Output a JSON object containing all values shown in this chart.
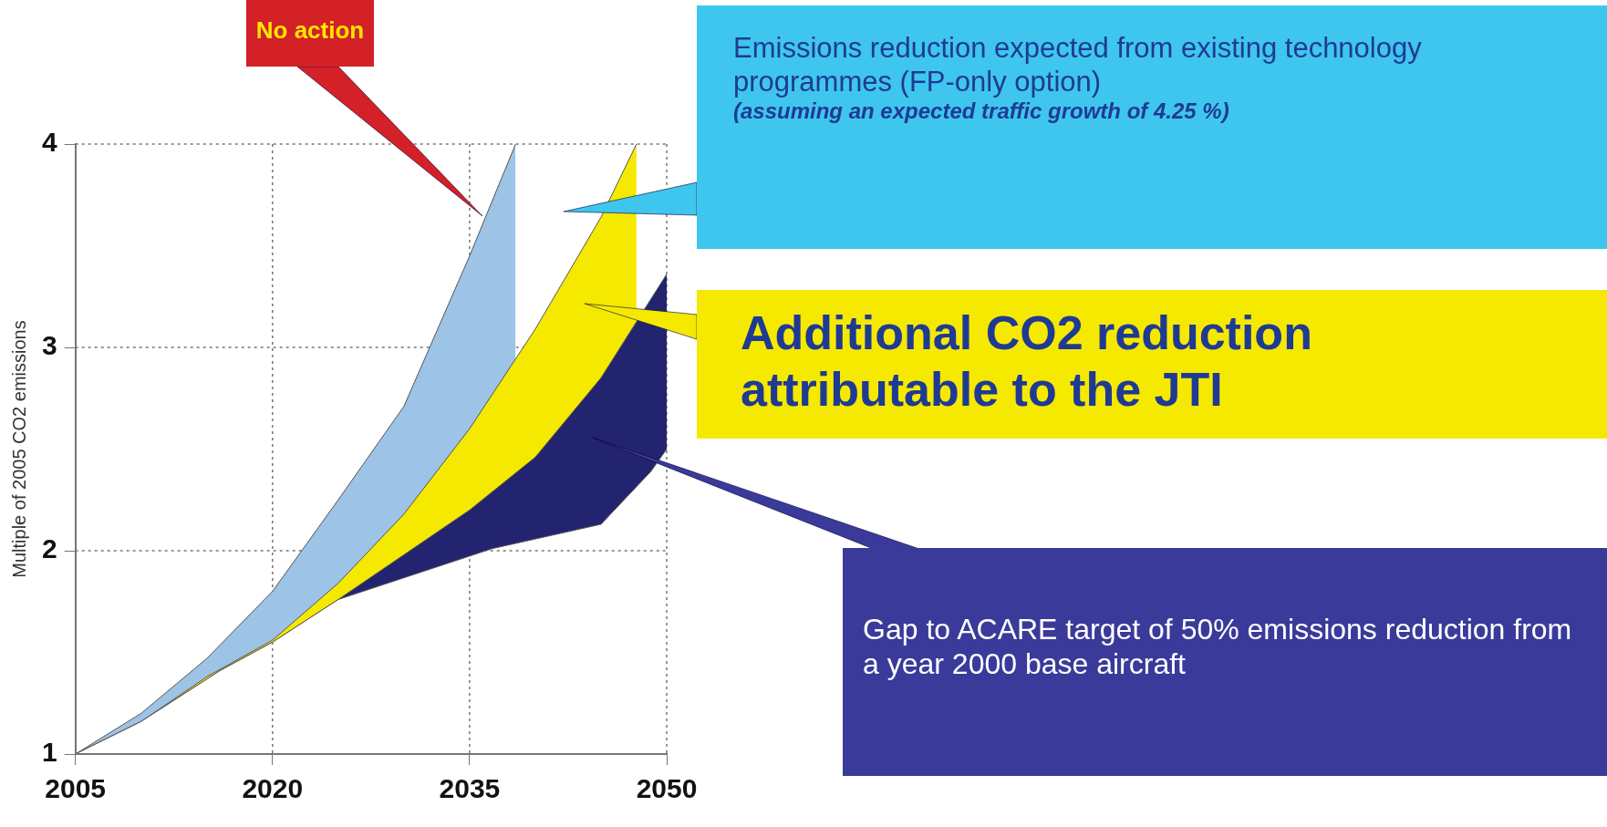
{
  "chart_data": {
    "type": "area",
    "ylabel": "Multiple of 2005 CO2 emissions",
    "xlim": [
      2005,
      2050
    ],
    "xticks": [
      2005,
      2020,
      2035,
      2050
    ],
    "ylim": [
      1,
      4
    ],
    "yticks": [
      1,
      2,
      3,
      4
    ],
    "grid": true,
    "legend": false,
    "series": [
      {
        "color": "#9dc3e6",
        "x": [
          2005,
          2010,
          2015,
          2020,
          2025,
          2030,
          2035,
          2038.5
        ],
        "values": [
          1,
          1.2,
          1.47,
          1.8,
          2.25,
          2.71,
          3.45,
          4
        ]
      },
      {
        "color": "#f5e900",
        "x": [
          2005,
          2010,
          2015,
          2020,
          2025,
          2030,
          2035,
          2040,
          2045,
          2047.7
        ],
        "values": [
          1,
          1.16,
          1.38,
          1.56,
          1.84,
          2.18,
          2.6,
          3.09,
          3.64,
          4
        ]
      },
      {
        "color": "#23246f",
        "x": [
          2005,
          2010,
          2016,
          2020,
          2025,
          2030,
          2035,
          2040,
          2045,
          2050
        ],
        "values": [
          1,
          1.16,
          1.41,
          1.55,
          1.76,
          1.98,
          2.2,
          2.46,
          2.85,
          3.36
        ]
      },
      {
        "color": "#ffffff",
        "x": [
          2005,
          2010,
          2016,
          2020,
          2025,
          2036.7,
          2045,
          2048.8,
          2050
        ],
        "values": [
          1,
          1.16,
          1.41,
          1.55,
          1.76,
          2.01,
          2.13,
          2.39,
          2.5
        ]
      }
    ],
    "annotations": [
      "No action",
      "Emissions reduction expected from existing technology programmes (FP-only option)\n(assuming an expected traffic growth of 4.25 %)",
      "Additional CO2 reduction attributable to the JTI",
      "Gap to ACARE target of 50% emissions reduction from a year 2000 base aircraft"
    ]
  }
}
